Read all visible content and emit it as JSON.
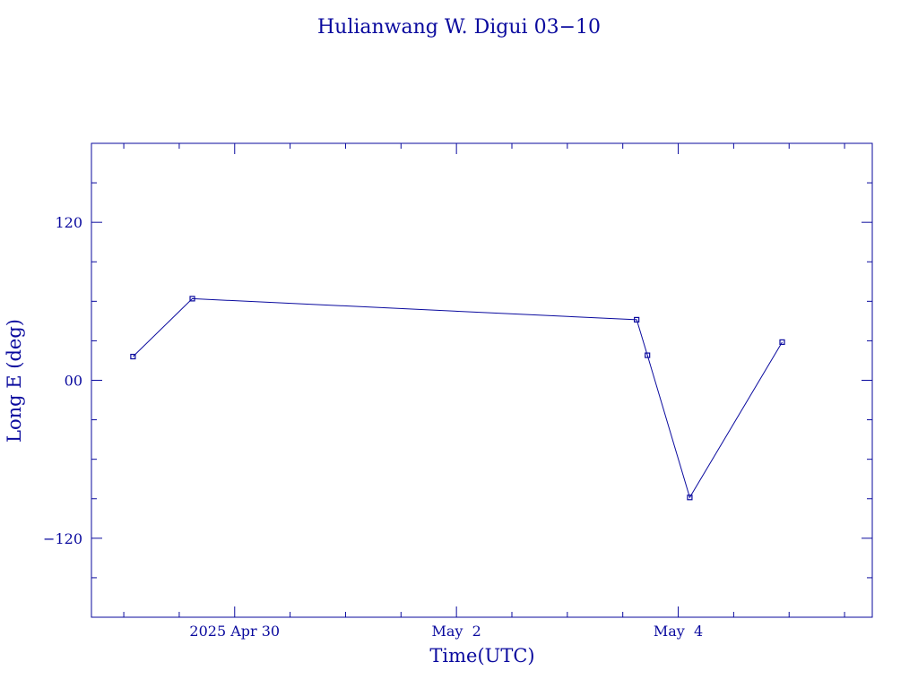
{
  "chart_data": {
    "type": "line",
    "title": "Hulianwang W. Digui 03−10",
    "xlabel": "Time(UTC)",
    "ylabel": "Long E (deg)",
    "x_is_date": true,
    "xlim": [
      "2025-04-28T17:00",
      "2025-05-05T18:00"
    ],
    "ylim": [
      -180,
      180
    ],
    "x_ticks": [
      {
        "x": "2025-04-30T00:00",
        "label": "2025 Apr 30"
      },
      {
        "x": "2025-05-02T00:00",
        "label": "May  2"
      },
      {
        "x": "2025-05-04T00:00",
        "label": "May  4"
      }
    ],
    "y_ticks": [
      {
        "y": 120,
        "label": "120"
      },
      {
        "y": 0,
        "label": "00"
      },
      {
        "y": -120,
        "label": "−120"
      }
    ],
    "series": [
      {
        "x": [
          "2025-04-29T02:00",
          "2025-04-29T14:50",
          "2025-05-03T15:00",
          "2025-05-03T17:20",
          "2025-05-04T02:30",
          "2025-05-04T22:30"
        ],
        "y": [
          18,
          62,
          46,
          19,
          -89,
          29
        ]
      }
    ],
    "color": "#0a0a9e",
    "grid": false,
    "marker": "square"
  }
}
